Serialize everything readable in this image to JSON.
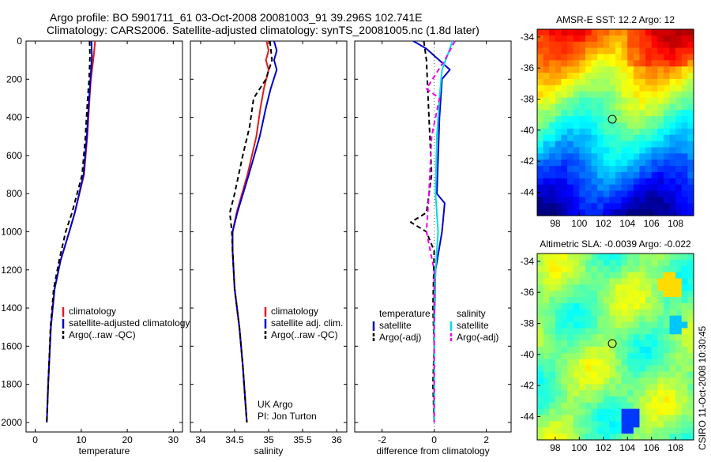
{
  "header": {
    "title_line1": "Argo profile: BO 5901711_61 03-Oct-2008 20081003_91 39.296S 102.741E",
    "title_line2": "Climatology: CARS2006. Satellite-adjusted climatology: synTS_20081005.nc (1.8d later)"
  },
  "side_label": "CSIRO 11-Oct-2008 10:30:45",
  "colors": {
    "red": "#e41a1c",
    "blue": "#0000cc",
    "black": "#000000",
    "cyan": "#00dddd",
    "magenta": "#ee00ee"
  },
  "chart_data": [
    {
      "type": "line",
      "xlabel": "temperature",
      "xlim": [
        -2,
        32
      ],
      "ylim": [
        0,
        2050
      ],
      "y_reversed": true,
      "xticks": [
        "0",
        "10",
        "20",
        "30"
      ],
      "yticks": [
        "0",
        "200",
        "400",
        "600",
        "800",
        "1000",
        "1200",
        "1400",
        "1600",
        "1800",
        "2000"
      ],
      "legend": [
        "climatology",
        "satellite-adjusted climatology",
        "Argo(..raw -QC)"
      ],
      "series": [
        {
          "name": "climatology",
          "color": "red",
          "dash": "",
          "points": [
            [
              13.0,
              0
            ],
            [
              12.7,
              80
            ],
            [
              12.1,
              200
            ],
            [
              11.8,
              300
            ],
            [
              11.3,
              500
            ],
            [
              10.6,
              700
            ],
            [
              8.6,
              900
            ],
            [
              7.4,
              1000
            ],
            [
              5.5,
              1150
            ],
            [
              4.2,
              1300
            ],
            [
              3.4,
              1500
            ],
            [
              2.8,
              1800
            ],
            [
              2.5,
              2000
            ]
          ]
        },
        {
          "name": "satellite-adjusted climatology",
          "color": "blue",
          "dash": "",
          "points": [
            [
              12.2,
              0
            ],
            [
              12.3,
              80
            ],
            [
              12.0,
              200
            ],
            [
              11.7,
              300
            ],
            [
              11.2,
              500
            ],
            [
              10.5,
              700
            ],
            [
              8.6,
              900
            ],
            [
              7.4,
              1000
            ],
            [
              5.5,
              1150
            ],
            [
              4.2,
              1300
            ],
            [
              3.4,
              1500
            ],
            [
              2.8,
              1800
            ],
            [
              2.5,
              2000
            ]
          ]
        },
        {
          "name": "Argo(..raw -QC)",
          "color": "black",
          "dash": "6,4",
          "points": [
            [
              11.8,
              0
            ],
            [
              11.9,
              80
            ],
            [
              11.7,
              200
            ],
            [
              11.4,
              300
            ],
            [
              10.9,
              500
            ],
            [
              10.2,
              700
            ],
            [
              8.0,
              900
            ],
            [
              6.6,
              1000
            ],
            [
              5.2,
              1150
            ],
            [
              4.0,
              1300
            ],
            [
              3.3,
              1500
            ],
            [
              2.8,
              1800
            ],
            [
              2.5,
              2000
            ]
          ]
        }
      ]
    },
    {
      "type": "line",
      "xlabel": "salinity",
      "xlim": [
        33.85,
        36.15
      ],
      "ylim": [
        0,
        2050
      ],
      "y_reversed": true,
      "xticks": [
        "34",
        "34.5",
        "35",
        "35.5",
        "36"
      ],
      "yticks": [],
      "legend": [
        "climatology",
        "satellite adj. clim.",
        "Argo(..raw -QC)"
      ],
      "annotations": [
        "UK Argo",
        "PI: Jon Turton"
      ],
      "series": [
        {
          "name": "climatology",
          "color": "red",
          "dash": "",
          "points": [
            [
              34.97,
              0
            ],
            [
              35.0,
              50
            ],
            [
              34.96,
              100
            ],
            [
              35.0,
              150
            ],
            [
              34.93,
              250
            ],
            [
              34.88,
              350
            ],
            [
              34.82,
              500
            ],
            [
              34.69,
              700
            ],
            [
              34.53,
              900
            ],
            [
              34.47,
              1000
            ],
            [
              34.47,
              1100
            ],
            [
              34.5,
              1300
            ],
            [
              34.57,
              1500
            ],
            [
              34.62,
              1700
            ],
            [
              34.66,
              1900
            ],
            [
              34.68,
              2000
            ]
          ]
        },
        {
          "name": "satellite adj. clim.",
          "color": "blue",
          "dash": "",
          "points": [
            [
              35.08,
              0
            ],
            [
              35.12,
              50
            ],
            [
              35.08,
              100
            ],
            [
              35.12,
              150
            ],
            [
              35.03,
              250
            ],
            [
              34.96,
              350
            ],
            [
              34.87,
              500
            ],
            [
              34.71,
              700
            ],
            [
              34.54,
              900
            ],
            [
              34.47,
              1000
            ],
            [
              34.47,
              1100
            ],
            [
              34.5,
              1300
            ],
            [
              34.57,
              1500
            ],
            [
              34.62,
              1700
            ],
            [
              34.66,
              1900
            ],
            [
              34.68,
              2000
            ]
          ]
        },
        {
          "name": "Argo(..raw -QC)",
          "color": "black",
          "dash": "6,4",
          "points": [
            [
              35.02,
              0
            ],
            [
              35.05,
              100
            ],
            [
              34.96,
              200
            ],
            [
              34.78,
              300
            ],
            [
              34.72,
              450
            ],
            [
              34.62,
              600
            ],
            [
              34.5,
              800
            ],
            [
              34.43,
              900
            ],
            [
              34.46,
              1000
            ],
            [
              34.47,
              1100
            ],
            [
              34.5,
              1300
            ],
            [
              34.57,
              1500
            ],
            [
              34.62,
              1700
            ],
            [
              34.66,
              1900
            ],
            [
              34.68,
              2000
            ]
          ]
        }
      ]
    },
    {
      "type": "line",
      "xlabel": "difference from climatology",
      "xlim": [
        -3.05,
        2.95
      ],
      "ylim": [
        0,
        2050
      ],
      "y_reversed": true,
      "xticks": [
        "-2",
        "0",
        "2"
      ],
      "yticks": [],
      "legend_groups": [
        {
          "heading": "temperature",
          "items": [
            "satellite",
            "Argo(-adj)"
          ]
        },
        {
          "heading": "salinity",
          "items": [
            "satellite",
            "Argo(-adj)"
          ]
        }
      ],
      "series": [
        {
          "name": "temperature satellite",
          "color": "blue",
          "dash": "",
          "points": [
            [
              -0.8,
              0
            ],
            [
              -0.3,
              40
            ],
            [
              0.6,
              150
            ],
            [
              0.3,
              200
            ],
            [
              0.2,
              400
            ],
            [
              0.1,
              800
            ],
            [
              0.4,
              850
            ],
            [
              0.3,
              1000
            ],
            [
              0.05,
              1200
            ],
            [
              0.0,
              1500
            ],
            [
              0.0,
              2000
            ]
          ]
        },
        {
          "name": "temperature Argo(-adj)",
          "color": "black",
          "dash": "6,4",
          "points": [
            [
              -0.4,
              0
            ],
            [
              -0.3,
              100
            ],
            [
              -0.2,
              400
            ],
            [
              -0.1,
              700
            ],
            [
              -0.3,
              900
            ],
            [
              -0.9,
              950
            ],
            [
              -0.3,
              1000
            ],
            [
              0.0,
              1100
            ],
            [
              -0.05,
              1400
            ],
            [
              0.0,
              1600
            ],
            [
              -0.05,
              1800
            ],
            [
              0.0,
              2000
            ]
          ]
        },
        {
          "name": "salinity satellite",
          "color": "cyan",
          "dash": "",
          "points": [
            [
              0.7,
              0
            ],
            [
              0.5,
              80
            ],
            [
              0.3,
              150
            ],
            [
              0.2,
              300
            ],
            [
              0.1,
              500
            ],
            [
              0.05,
              800
            ],
            [
              0.15,
              1000
            ],
            [
              0.05,
              1200
            ],
            [
              0.0,
              1400
            ],
            [
              0.0,
              2000
            ]
          ]
        },
        {
          "name": "salinity Argo(-adj)",
          "color": "magenta",
          "dash": "6,4",
          "points": [
            [
              0.8,
              0
            ],
            [
              0.4,
              100
            ],
            [
              -0.3,
              250
            ],
            [
              0.2,
              300
            ],
            [
              -0.1,
              500
            ],
            [
              -0.2,
              800
            ],
            [
              -0.3,
              1000
            ],
            [
              0.0,
              1200
            ],
            [
              0.0,
              1500
            ],
            [
              0.0,
              2000
            ]
          ]
        }
      ]
    },
    {
      "type": "heatmap",
      "title": "AMSR-E SST: 12.2 Argo: 12",
      "xlim": [
        96.5,
        109.5
      ],
      "ylim": [
        -45.5,
        -33.5
      ],
      "xticks": [
        "98",
        "100",
        "102",
        "104",
        "106",
        "108"
      ],
      "yticks": [
        "-34",
        "-36",
        "-38",
        "-40",
        "-42",
        "-44"
      ],
      "marker": [
        102.741,
        -39.296
      ]
    },
    {
      "type": "heatmap",
      "title": "Altimetric SLA: -0.0039 Argo: -0.022",
      "xlim": [
        96.5,
        109.5
      ],
      "ylim": [
        -45.5,
        -33.5
      ],
      "xticks": [
        "98",
        "100",
        "102",
        "104",
        "106",
        "108"
      ],
      "yticks": [
        "-34",
        "-36",
        "-38",
        "-40",
        "-42",
        "-44"
      ],
      "marker": [
        102.741,
        -39.296
      ]
    }
  ]
}
